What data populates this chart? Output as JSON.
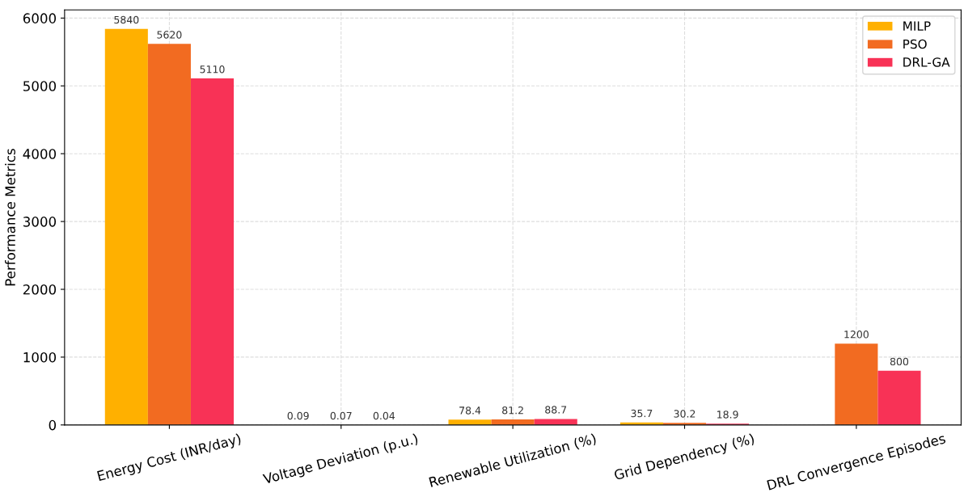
{
  "chart_data": {
    "type": "bar",
    "ylabel": "Performance Metrics",
    "categories": [
      "Energy Cost (INR/day)",
      "Voltage Deviation (p.u.)",
      "Renewable Utilization (%)",
      "Grid Dependency (%)",
      "DRL Convergence Episodes"
    ],
    "series": [
      {
        "name": "MILP",
        "color": "#ffb000",
        "values": [
          5840,
          0.09,
          78.4,
          35.7,
          null
        ]
      },
      {
        "name": "PSO",
        "color": "#f26b21",
        "values": [
          5620,
          0.07,
          81.2,
          30.2,
          1200
        ]
      },
      {
        "name": "DRL-GA",
        "color": "#f83256",
        "values": [
          5110,
          0.04,
          88.7,
          18.9,
          800
        ]
      }
    ],
    "ylim": [
      0,
      6120
    ],
    "yticks": [
      0,
      1000,
      2000,
      3000,
      4000,
      5000,
      6000
    ],
    "grid": true,
    "legend": "top right",
    "data_labels": true
  }
}
